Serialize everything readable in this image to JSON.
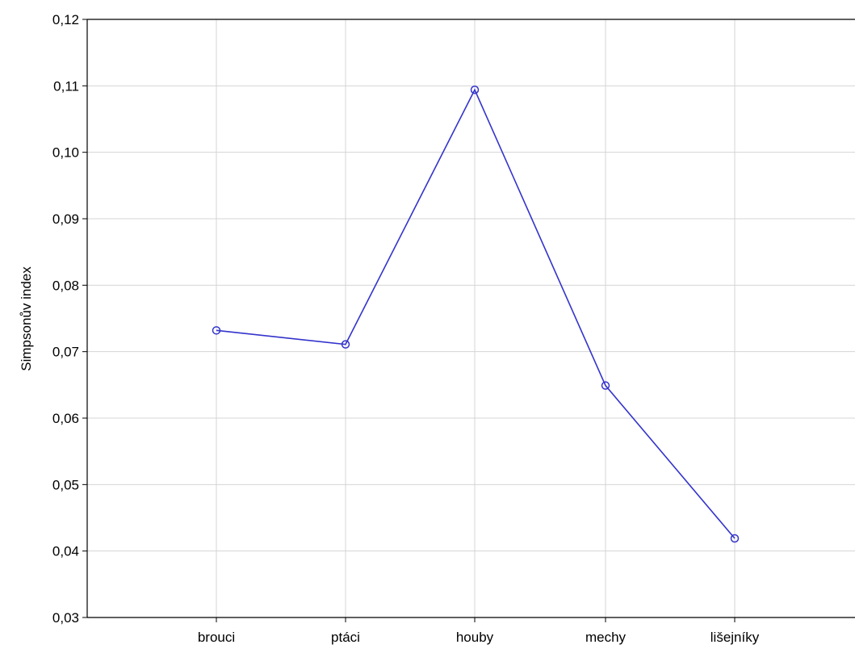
{
  "chart_data": {
    "type": "line",
    "title": "",
    "xlabel": "",
    "ylabel": "Simpsonův index",
    "categories": [
      "brouci",
      "ptáci",
      "houby",
      "mechy",
      "lišejníky"
    ],
    "series": [
      {
        "values": [
          0.0732,
          0.0711,
          0.1094,
          0.0649,
          0.0419
        ]
      }
    ],
    "ylim": [
      0.03,
      0.12
    ],
    "yticks": [
      "0,03",
      "0,04",
      "0,05",
      "0,06",
      "0,07",
      "0,08",
      "0,09",
      "0,10",
      "0,11",
      "0,12"
    ],
    "grid": true,
    "legend": "none",
    "marker": "open-circle"
  },
  "colors": {
    "series": "#3333cc",
    "grid": "#d4d4d4",
    "axis": "#000000",
    "background": "#ffffff"
  }
}
